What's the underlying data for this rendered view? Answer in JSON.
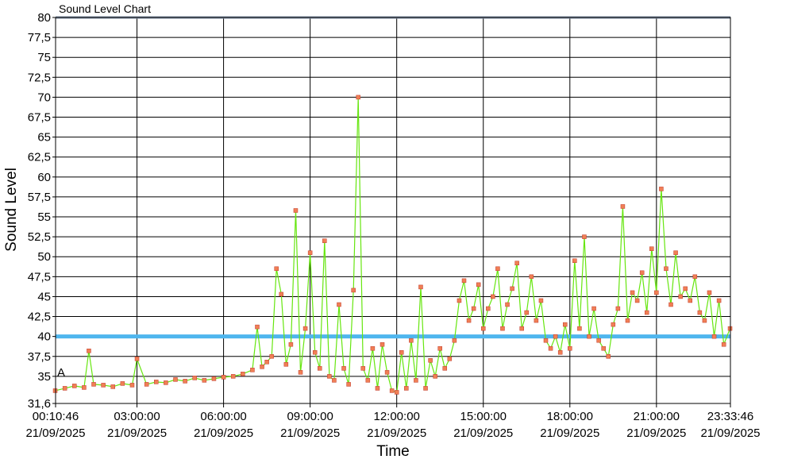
{
  "chart_data": {
    "type": "line",
    "title": "Sound Level Chart",
    "xlabel": "Time",
    "ylabel": "Sound Level",
    "ylim": [
      31.6,
      80
    ],
    "xlim": [
      "2025-09-21T00:10:46",
      "2025-09-21T23:33:46"
    ],
    "grid": true,
    "y_ticks": [
      "31,6",
      "35",
      "37,5",
      "40",
      "42,5",
      "45",
      "47,5",
      "50",
      "52,5",
      "55",
      "57,5",
      "60",
      "62,5",
      "65",
      "67,5",
      "70",
      "72,5",
      "75",
      "77,5",
      "80"
    ],
    "x_ticks": [
      {
        "time": "00:10:46",
        "date": "21/09/2025"
      },
      {
        "time": "03:00:00",
        "date": "21/09/2025"
      },
      {
        "time": "06:00:00",
        "date": "21/09/2025"
      },
      {
        "time": "09:00:00",
        "date": "21/09/2025"
      },
      {
        "time": "12:00:00",
        "date": "21/09/2025"
      },
      {
        "time": "15:00:00",
        "date": "21/09/2025"
      },
      {
        "time": "18:00:00",
        "date": "21/09/2025"
      },
      {
        "time": "21:00:00",
        "date": "21/09/2025"
      },
      {
        "time": "23:33:46",
        "date": "21/09/2025"
      }
    ],
    "threshold": {
      "value": 40,
      "color": "#4fb6ee"
    },
    "annotation": {
      "text": "A",
      "y": 35.5
    },
    "series": [
      {
        "color": "#66e60f",
        "marker_fill": "#f07f55",
        "marker_stroke": "#c0392b",
        "x": [
          "00:10",
          "00:30",
          "00:50",
          "01:10",
          "01:20",
          "01:30",
          "01:50",
          "02:10",
          "02:30",
          "02:50",
          "03:00",
          "03:20",
          "03:40",
          "04:00",
          "04:20",
          "04:40",
          "05:00",
          "05:20",
          "05:40",
          "06:00",
          "06:20",
          "06:40",
          "07:00",
          "07:10",
          "07:20",
          "07:30",
          "07:40",
          "07:50",
          "08:00",
          "08:10",
          "08:20",
          "08:30",
          "08:40",
          "08:50",
          "09:00",
          "09:10",
          "09:20",
          "09:30",
          "09:40",
          "09:50",
          "10:00",
          "10:10",
          "10:20",
          "10:30",
          "10:40",
          "10:50",
          "11:00",
          "11:10",
          "11:20",
          "11:30",
          "11:40",
          "11:50",
          "12:00",
          "12:10",
          "12:20",
          "12:30",
          "12:40",
          "12:50",
          "13:00",
          "13:10",
          "13:20",
          "13:30",
          "13:40",
          "13:50",
          "14:00",
          "14:10",
          "14:20",
          "14:30",
          "14:40",
          "14:50",
          "15:00",
          "15:10",
          "15:20",
          "15:30",
          "15:40",
          "15:50",
          "16:00",
          "16:10",
          "16:20",
          "16:30",
          "16:40",
          "16:50",
          "17:00",
          "17:10",
          "17:20",
          "17:30",
          "17:40",
          "17:50",
          "18:00",
          "18:10",
          "18:20",
          "18:30",
          "18:40",
          "18:50",
          "19:00",
          "19:10",
          "19:20",
          "19:30",
          "19:40",
          "19:50",
          "20:00",
          "20:10",
          "20:20",
          "20:30",
          "20:40",
          "20:50",
          "21:00",
          "21:10",
          "21:20",
          "21:30",
          "21:40",
          "21:50",
          "22:00",
          "22:10",
          "22:20",
          "22:30",
          "22:40",
          "22:50",
          "23:00",
          "23:10",
          "23:20",
          "23:33"
        ],
        "y": [
          33.2,
          33.5,
          33.8,
          33.6,
          38.2,
          34.0,
          33.9,
          33.7,
          34.1,
          33.9,
          37.2,
          34.0,
          34.3,
          34.2,
          34.6,
          34.4,
          34.8,
          34.5,
          34.7,
          34.9,
          35.0,
          35.3,
          35.8,
          41.2,
          36.2,
          36.8,
          37.5,
          48.5,
          45.3,
          36.5,
          39.0,
          55.8,
          35.5,
          41.0,
          50.5,
          38.0,
          36.0,
          52.0,
          35.0,
          34.5,
          44.0,
          36.0,
          34.0,
          45.8,
          70.0,
          36.0,
          34.5,
          38.5,
          33.5,
          39.0,
          35.5,
          33.2,
          33.0,
          38.0,
          33.5,
          39.5,
          34.5,
          46.2,
          33.5,
          37.0,
          35.0,
          38.5,
          36.0,
          37.2,
          39.5,
          44.5,
          47.0,
          42.0,
          43.5,
          46.5,
          41.0,
          43.5,
          45.0,
          48.5,
          41.0,
          44.0,
          46.0,
          49.2,
          41.0,
          43.0,
          47.5,
          42.0,
          44.5,
          39.5,
          38.5,
          40.0,
          38.0,
          41.5,
          38.5,
          49.5,
          41.0,
          52.5,
          40.0,
          43.5,
          39.5,
          38.5,
          37.5,
          41.5,
          43.5,
          56.3,
          42.0,
          45.5,
          44.5,
          48.0,
          43.0,
          51.0,
          45.5,
          58.5,
          48.5,
          44.0,
          50.5,
          45.0,
          46.0,
          44.5,
          47.5,
          43.0,
          42.0,
          45.5,
          40.0,
          44.5,
          39.0,
          41.0
        ]
      }
    ]
  }
}
